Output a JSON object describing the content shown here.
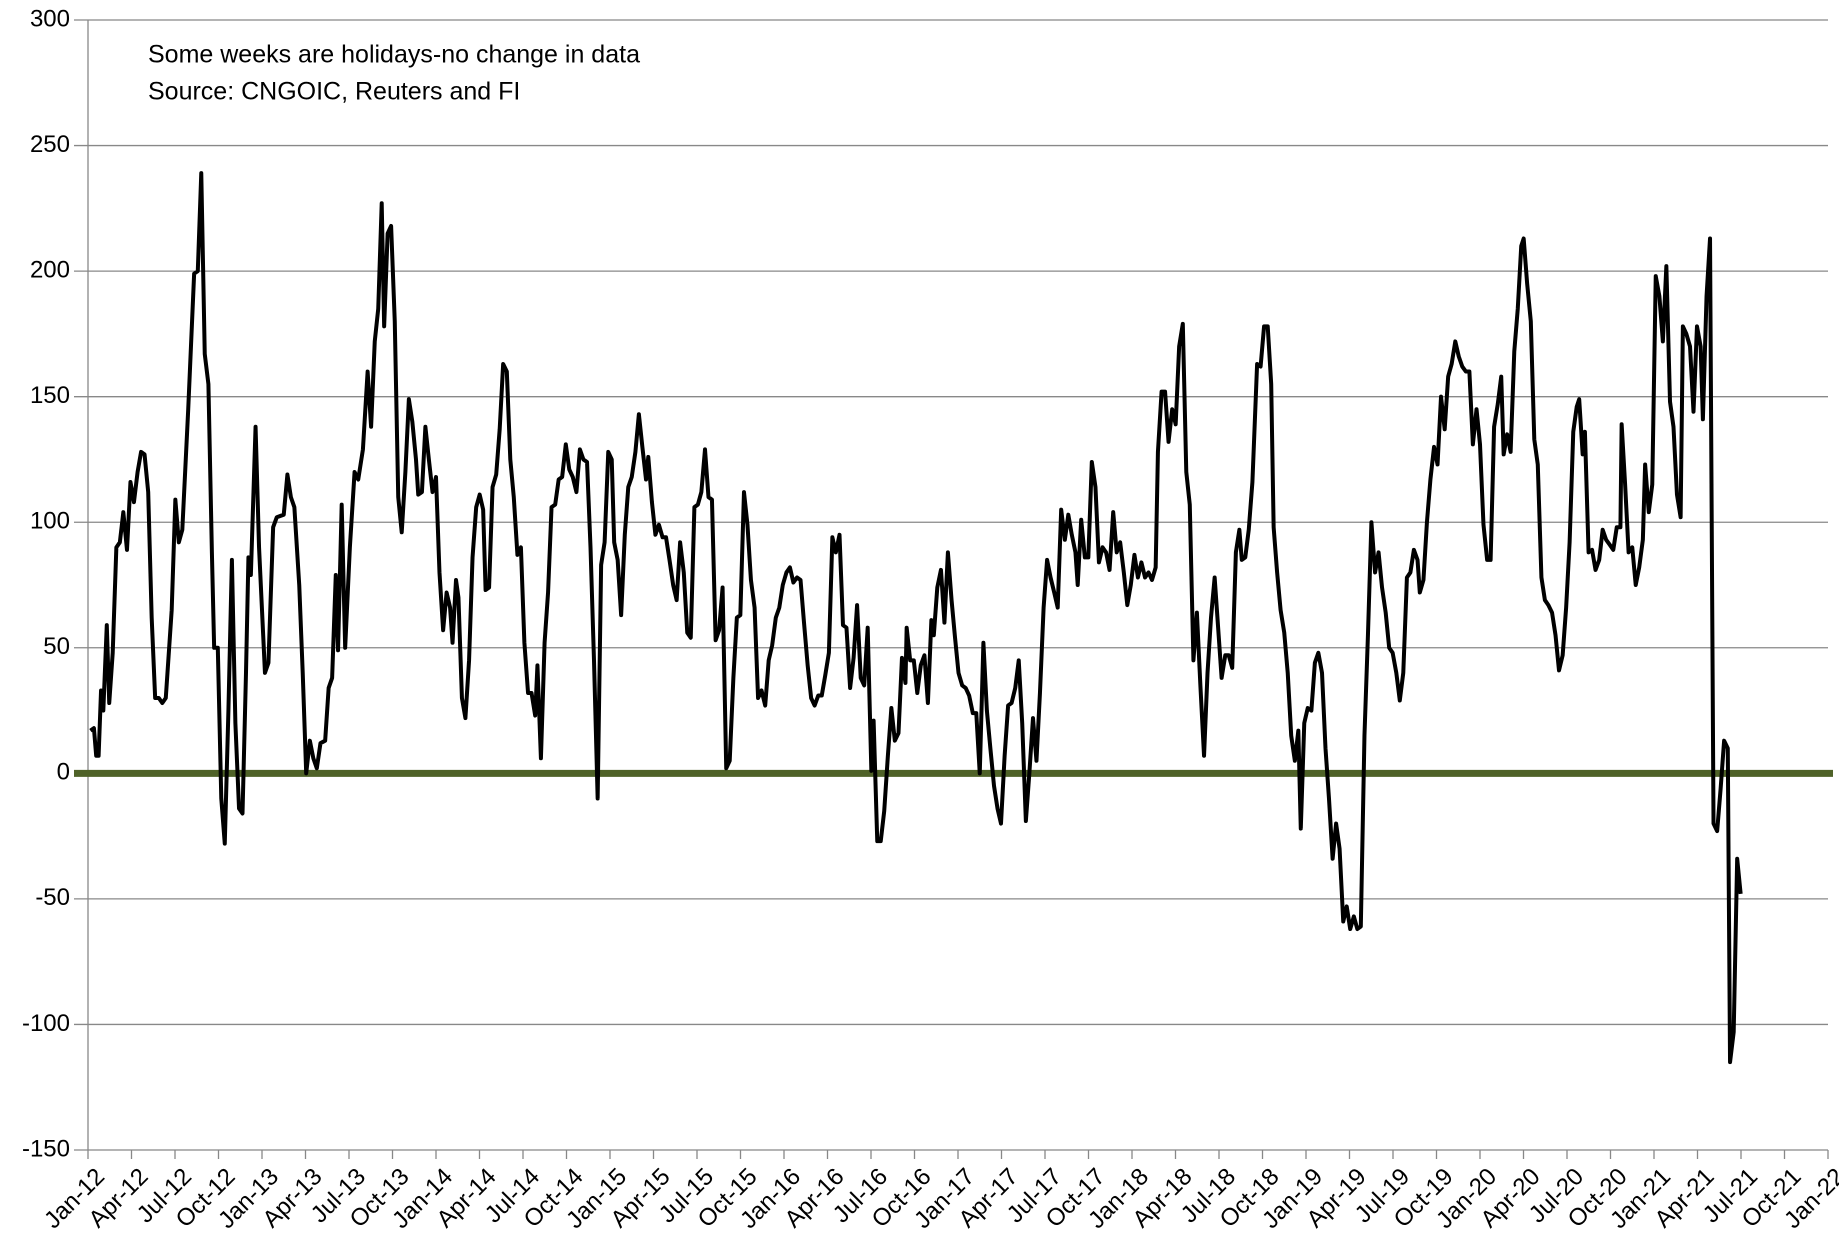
{
  "chart_data": {
    "type": "line",
    "annotations": [
      "Some weeks are holidays-no change in data",
      "Source: CNGOIC, Reuters and FI"
    ],
    "color": "#000000",
    "hline": 0,
    "hline_color": "#4f6228",
    "grid": true,
    "xlim": [
      2012,
      2022
    ],
    "ylim": [
      -150,
      300
    ],
    "yticks": [
      -150,
      -100,
      -50,
      0,
      50,
      100,
      150,
      200,
      250,
      300
    ],
    "xticks": [
      {
        "value": 2012,
        "label": "Jan-12"
      },
      {
        "value": 2012.25,
        "label": "Apr-12"
      },
      {
        "value": 2012.5,
        "label": "Jul-12"
      },
      {
        "value": 2012.75,
        "label": "Oct-12"
      },
      {
        "value": 2013,
        "label": "Jan-13"
      },
      {
        "value": 2013.25,
        "label": "Apr-13"
      },
      {
        "value": 2013.5,
        "label": "Jul-13"
      },
      {
        "value": 2013.75,
        "label": "Oct-13"
      },
      {
        "value": 2014,
        "label": "Jan-14"
      },
      {
        "value": 2014.25,
        "label": "Apr-14"
      },
      {
        "value": 2014.5,
        "label": "Jul-14"
      },
      {
        "value": 2014.75,
        "label": "Oct-14"
      },
      {
        "value": 2015,
        "label": "Jan-15"
      },
      {
        "value": 2015.25,
        "label": "Apr-15"
      },
      {
        "value": 2015.5,
        "label": "Jul-15"
      },
      {
        "value": 2015.75,
        "label": "Oct-15"
      },
      {
        "value": 2016,
        "label": "Jan-16"
      },
      {
        "value": 2016.25,
        "label": "Apr-16"
      },
      {
        "value": 2016.5,
        "label": "Jul-16"
      },
      {
        "value": 2016.75,
        "label": "Oct-16"
      },
      {
        "value": 2017,
        "label": "Jan-17"
      },
      {
        "value": 2017.25,
        "label": "Apr-17"
      },
      {
        "value": 2017.5,
        "label": "Jul-17"
      },
      {
        "value": 2017.75,
        "label": "Oct-17"
      },
      {
        "value": 2018,
        "label": "Jan-18"
      },
      {
        "value": 2018.25,
        "label": "Apr-18"
      },
      {
        "value": 2018.5,
        "label": "Jul-18"
      },
      {
        "value": 2018.75,
        "label": "Oct-18"
      },
      {
        "value": 2019,
        "label": "Jan-19"
      },
      {
        "value": 2019.25,
        "label": "Apr-19"
      },
      {
        "value": 2019.5,
        "label": "Jul-19"
      },
      {
        "value": 2019.75,
        "label": "Oct-19"
      },
      {
        "value": 2020,
        "label": "Jan-20"
      },
      {
        "value": 2020.25,
        "label": "Apr-20"
      },
      {
        "value": 2020.5,
        "label": "Jul-20"
      },
      {
        "value": 2020.75,
        "label": "Oct-20"
      },
      {
        "value": 2021,
        "label": "Jan-21"
      },
      {
        "value": 2021.25,
        "label": "Apr-21"
      },
      {
        "value": 2021.5,
        "label": "Jul-21"
      },
      {
        "value": 2021.75,
        "label": "Oct-21"
      },
      {
        "value": 2022,
        "label": "Jan-22"
      }
    ],
    "x": [
      2012.014,
      2012.034,
      2012.047,
      2012.061,
      2012.075,
      2012.088,
      2012.108,
      2012.122,
      2012.142,
      2012.163,
      2012.183,
      2012.203,
      2012.224,
      2012.244,
      2012.264,
      2012.285,
      2012.305,
      2012.325,
      2012.346,
      2012.366,
      2012.386,
      2012.407,
      2012.427,
      2012.447,
      2012.481,
      2012.502,
      2012.522,
      2012.542,
      2012.576,
      2012.61,
      2012.631,
      2012.651,
      2012.671,
      2012.692,
      2012.712,
      2012.725,
      2012.746,
      2012.766,
      2012.786,
      2012.807,
      2012.827,
      2012.847,
      2012.868,
      2012.888,
      2012.908,
      2012.922,
      2012.936,
      2012.963,
      2012.983,
      2013.017,
      2013.037,
      2013.064,
      2013.085,
      2013.125,
      2013.146,
      2013.166,
      2013.186,
      2013.214,
      2013.234,
      2013.254,
      2013.275,
      2013.295,
      2013.315,
      2013.336,
      2013.363,
      2013.383,
      2013.403,
      2013.424,
      2013.437,
      2013.458,
      2013.478,
      2013.505,
      2013.532,
      2013.553,
      2013.58,
      2013.607,
      2013.627,
      2013.648,
      2013.668,
      2013.688,
      2013.702,
      2013.722,
      2013.742,
      2013.763,
      2013.783,
      2013.803,
      2013.824,
      2013.844,
      2013.864,
      2013.885,
      2013.898,
      2013.919,
      2013.939,
      2013.959,
      2013.98,
      2014.0,
      2014.02,
      2014.041,
      2014.061,
      2014.081,
      2014.095,
      2014.115,
      2014.129,
      2014.149,
      2014.169,
      2014.19,
      2014.21,
      2014.231,
      2014.251,
      2014.271,
      2014.285,
      2014.305,
      2014.325,
      2014.346,
      2014.366,
      2014.386,
      2014.407,
      2014.427,
      2014.447,
      2014.468,
      2014.488,
      2014.508,
      2014.529,
      2014.549,
      2014.57,
      2014.583,
      2014.603,
      2014.624,
      2014.644,
      2014.664,
      2014.685,
      2014.705,
      2014.725,
      2014.746,
      2014.766,
      2014.786,
      2014.807,
      2014.827,
      2014.847,
      2014.868,
      2014.888,
      2014.908,
      2014.929,
      2014.949,
      2014.969,
      2014.99,
      2015.01,
      2015.024,
      2015.044,
      2015.064,
      2015.085,
      2015.105,
      2015.125,
      2015.146,
      2015.166,
      2015.186,
      2015.207,
      2015.22,
      2015.241,
      2015.261,
      2015.281,
      2015.302,
      2015.322,
      2015.342,
      2015.363,
      2015.383,
      2015.403,
      2015.424,
      2015.444,
      2015.464,
      2015.485,
      2015.505,
      2015.525,
      2015.546,
      2015.566,
      2015.586,
      2015.607,
      2015.627,
      2015.647,
      2015.668,
      2015.688,
      2015.709,
      2015.729,
      2015.749,
      2015.77,
      2015.79,
      2015.81,
      2015.831,
      2015.851,
      2015.871,
      2015.892,
      2015.912,
      2015.932,
      2015.953,
      2015.973,
      2015.993,
      2016.014,
      2016.034,
      2016.054,
      2016.075,
      2016.095,
      2016.115,
      2016.136,
      2016.156,
      2016.176,
      2016.197,
      2016.217,
      2016.237,
      2016.258,
      2016.278,
      2016.298,
      2016.319,
      2016.339,
      2016.359,
      2016.38,
      2016.4,
      2016.42,
      2016.441,
      2016.461,
      2016.481,
      2016.502,
      2016.515,
      2016.536,
      2016.556,
      2016.576,
      2016.597,
      2016.617,
      2016.637,
      2016.658,
      2016.678,
      2016.698,
      2016.705,
      2016.725,
      2016.746,
      2016.766,
      2016.786,
      2016.807,
      2016.827,
      2016.847,
      2016.861,
      2016.881,
      2016.902,
      2016.922,
      2016.942,
      2016.963,
      2016.983,
      2017.003,
      2017.024,
      2017.044,
      2017.064,
      2017.085,
      2017.105,
      2017.125,
      2017.146,
      2017.166,
      2017.186,
      2017.207,
      2017.227,
      2017.247,
      2017.268,
      2017.288,
      2017.308,
      2017.329,
      2017.349,
      2017.369,
      2017.39,
      2017.41,
      2017.431,
      2017.451,
      2017.471,
      2017.492,
      2017.512,
      2017.532,
      2017.553,
      2017.573,
      2017.593,
      2017.614,
      2017.634,
      2017.654,
      2017.675,
      2017.688,
      2017.708,
      2017.729,
      2017.749,
      2017.769,
      2017.79,
      2017.81,
      2017.831,
      2017.851,
      2017.871,
      2017.892,
      2017.912,
      2017.932,
      2017.953,
      2017.973,
      2017.993,
      2018.014,
      2018.034,
      2018.054,
      2018.075,
      2018.095,
      2018.115,
      2018.136,
      2018.149,
      2018.17,
      2018.19,
      2018.21,
      2018.231,
      2018.251,
      2018.271,
      2018.292,
      2018.312,
      2018.332,
      2018.353,
      2018.373,
      2018.393,
      2018.414,
      2018.434,
      2018.454,
      2018.475,
      2018.495,
      2018.515,
      2018.536,
      2018.556,
      2018.576,
      2018.597,
      2018.617,
      2018.631,
      2018.651,
      2018.671,
      2018.692,
      2018.719,
      2018.739,
      2018.759,
      2018.78,
      2018.8,
      2018.814,
      2018.834,
      2018.854,
      2018.875,
      2018.895,
      2018.915,
      2018.936,
      2018.956,
      2018.97,
      2018.99,
      2019.01,
      2019.031,
      2019.051,
      2019.071,
      2019.092,
      2019.112,
      2019.132,
      2019.153,
      2019.173,
      2019.193,
      2019.214,
      2019.234,
      2019.254,
      2019.275,
      2019.295,
      2019.315,
      2019.336,
      2019.356,
      2019.376,
      2019.397,
      2019.417,
      2019.437,
      2019.458,
      2019.478,
      2019.498,
      2019.519,
      2019.539,
      2019.559,
      2019.58,
      2019.6,
      2019.62,
      2019.641,
      2019.654,
      2019.675,
      2019.695,
      2019.715,
      2019.736,
      2019.756,
      2019.776,
      2019.797,
      2019.817,
      2019.837,
      2019.858,
      2019.878,
      2019.898,
      2019.919,
      2019.939,
      2019.959,
      2019.98,
      2020.0,
      2020.02,
      2020.041,
      2020.061,
      2020.081,
      2020.102,
      2020.122,
      2020.136,
      2020.156,
      2020.176,
      2020.197,
      2020.217,
      2020.237,
      2020.251,
      2020.271,
      2020.292,
      2020.312,
      2020.332,
      2020.353,
      2020.373,
      2020.393,
      2020.414,
      2020.434,
      2020.454,
      2020.475,
      2020.495,
      2020.515,
      2020.536,
      2020.556,
      2020.57,
      2020.59,
      2020.603,
      2020.624,
      2020.644,
      2020.664,
      2020.685,
      2020.705,
      2020.725,
      2020.746,
      2020.766,
      2020.786,
      2020.807,
      2020.814,
      2020.834,
      2020.854,
      2020.875,
      2020.895,
      2020.915,
      2020.936,
      2020.949,
      2020.97,
      2020.99,
      2021.01,
      2021.031,
      2021.051,
      2021.071,
      2021.092,
      2021.112,
      2021.132,
      2021.153,
      2021.166,
      2021.186,
      2021.207,
      2021.227,
      2021.247,
      2021.268,
      2021.281,
      2021.302,
      2021.322,
      2021.342,
      2021.363,
      2021.383,
      2021.403,
      2021.424,
      2021.437,
      2021.458,
      2021.478,
      2021.498
    ],
    "values": [
      17,
      18,
      7,
      7,
      33,
      25,
      59,
      28,
      48,
      90,
      92,
      104,
      89,
      116,
      108,
      120,
      128,
      127,
      112,
      62,
      30,
      30,
      28,
      30,
      65,
      109,
      92,
      97,
      145,
      199,
      200,
      239,
      167,
      155,
      88,
      50,
      50,
      -10,
      -28,
      25,
      85,
      20,
      -14,
      -16,
      40,
      86,
      79,
      138,
      90,
      40,
      44,
      98,
      102,
      103,
      119,
      110,
      106,
      75,
      40,
      0,
      13,
      6,
      2,
      12,
      13,
      34,
      38,
      79,
      49,
      107,
      50,
      90,
      120,
      117,
      129,
      160,
      138,
      172,
      185,
      227,
      178,
      215,
      218,
      180,
      110,
      96,
      120,
      149,
      140,
      125,
      111,
      112,
      138,
      125,
      112,
      118,
      80,
      57,
      72,
      66,
      52,
      77,
      70,
      30,
      22,
      45,
      86,
      106,
      111,
      105,
      73,
      74,
      114,
      119,
      137,
      163,
      160,
      125,
      110,
      87,
      90,
      52,
      32,
      32,
      23,
      43,
      6,
      52,
      72,
      106,
      107,
      117,
      118,
      131,
      121,
      118,
      112,
      129,
      125,
      124,
      90,
      45,
      -10,
      83,
      92,
      128,
      125,
      92,
      85,
      63,
      95,
      114,
      118,
      128,
      143,
      130,
      117,
      126,
      108,
      95,
      99,
      94,
      94,
      85,
      75,
      69,
      92,
      80,
      56,
      54,
      106,
      107,
      112,
      129,
      110,
      109,
      53,
      57,
      74,
      2,
      5,
      38,
      62,
      63,
      112,
      99,
      77,
      66,
      30,
      33,
      27,
      45,
      51,
      62,
      66,
      75,
      80,
      82,
      76,
      78,
      77,
      60,
      43,
      30,
      27,
      31,
      31,
      39,
      48,
      94,
      88,
      95,
      59,
      58,
      34,
      46,
      67,
      38,
      35,
      58,
      1,
      21,
      -27,
      -27,
      -15,
      7,
      26,
      13,
      16,
      46,
      36,
      58,
      45,
      45,
      32,
      43,
      47,
      28,
      61,
      55,
      74,
      81,
      60,
      88,
      69,
      54,
      40,
      35,
      34,
      31,
      24,
      24,
      0,
      52,
      25,
      10,
      -5,
      -14,
      -20,
      7,
      27,
      28,
      34,
      45,
      20,
      -19,
      0,
      22,
      5,
      32,
      66,
      85,
      78,
      72,
      66,
      105,
      93,
      103,
      95,
      88,
      75,
      101,
      86,
      86,
      124,
      114,
      84,
      90,
      88,
      81,
      104,
      88,
      92,
      80,
      67,
      75,
      87,
      78,
      84,
      78,
      80,
      77,
      82,
      128,
      152,
      152,
      132,
      145,
      139,
      170,
      179,
      120,
      107,
      45,
      64,
      35,
      7,
      40,
      62,
      78,
      58,
      38,
      47,
      47,
      42,
      88,
      97,
      85,
      86,
      97,
      116,
      163,
      162,
      178,
      178,
      155,
      98,
      80,
      65,
      56,
      40,
      15,
      5,
      17,
      -22,
      20,
      26,
      25,
      44,
      48,
      40,
      10,
      -10,
      -34,
      -20,
      -30,
      -59,
      -53,
      -62,
      -57,
      -62,
      -61,
      15,
      55,
      100,
      80,
      88,
      74,
      64,
      50,
      48,
      40,
      29,
      40,
      78,
      80,
      89,
      85,
      72,
      77,
      100,
      117,
      130,
      123,
      150,
      137,
      158,
      163,
      172,
      166,
      162,
      160,
      160,
      131,
      145,
      131,
      99,
      85,
      85,
      138,
      147,
      158,
      127,
      135,
      128,
      168,
      185,
      210,
      213,
      195,
      180,
      133,
      123,
      78,
      69,
      67,
      64,
      55,
      41,
      47,
      66,
      92,
      136,
      146,
      149,
      127,
      136,
      88,
      89,
      81,
      85,
      97,
      93,
      91,
      89,
      98,
      98,
      139,
      115,
      88,
      90,
      75,
      82,
      93,
      123,
      104,
      115,
      198,
      190,
      172,
      202,
      148,
      138,
      111,
      102,
      178,
      175,
      170,
      144,
      178,
      170,
      141,
      190,
      213,
      -20,
      -23,
      -6,
      13,
      10,
      -115,
      -103,
      -34,
      -48
    ]
  }
}
